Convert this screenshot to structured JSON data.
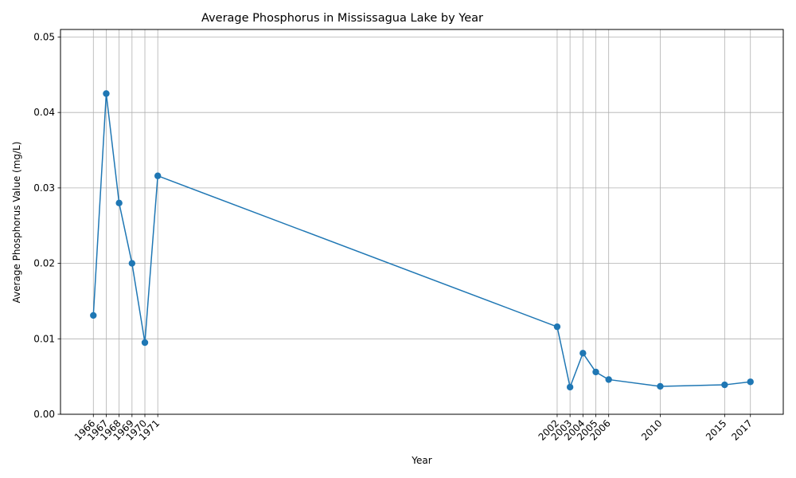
{
  "chart_data": {
    "type": "line",
    "title": "Average Phosphorus in Mississagua Lake by Year",
    "xlabel": "Year",
    "ylabel": "Average Phosphorus Value (mg/L)",
    "x": [
      1966,
      1967,
      1968,
      1969,
      1970,
      1971,
      2002,
      2003,
      2004,
      2005,
      2006,
      2010,
      2015,
      2017
    ],
    "series": [
      {
        "values": [
          0.0131,
          0.0425,
          0.028,
          0.02,
          0.0095,
          0.0316,
          0.0116,
          0.0036,
          0.0081,
          0.0056,
          0.0046,
          0.0037,
          0.0039,
          0.0043
        ],
        "color": "#1f77b4",
        "marker": "circle"
      }
    ],
    "xticks": [
      "1966",
      "1967",
      "1968",
      "1969",
      "1970",
      "1971",
      "2002",
      "2003",
      "2004",
      "2005",
      "2006",
      "2010",
      "2015",
      "2017"
    ],
    "yticks": [
      "0.00",
      "0.01",
      "0.02",
      "0.03",
      "0.04",
      "0.05"
    ],
    "xlim": [
      1963.45,
      2019.55
    ],
    "ylim": [
      0,
      0.051
    ],
    "grid": true
  }
}
